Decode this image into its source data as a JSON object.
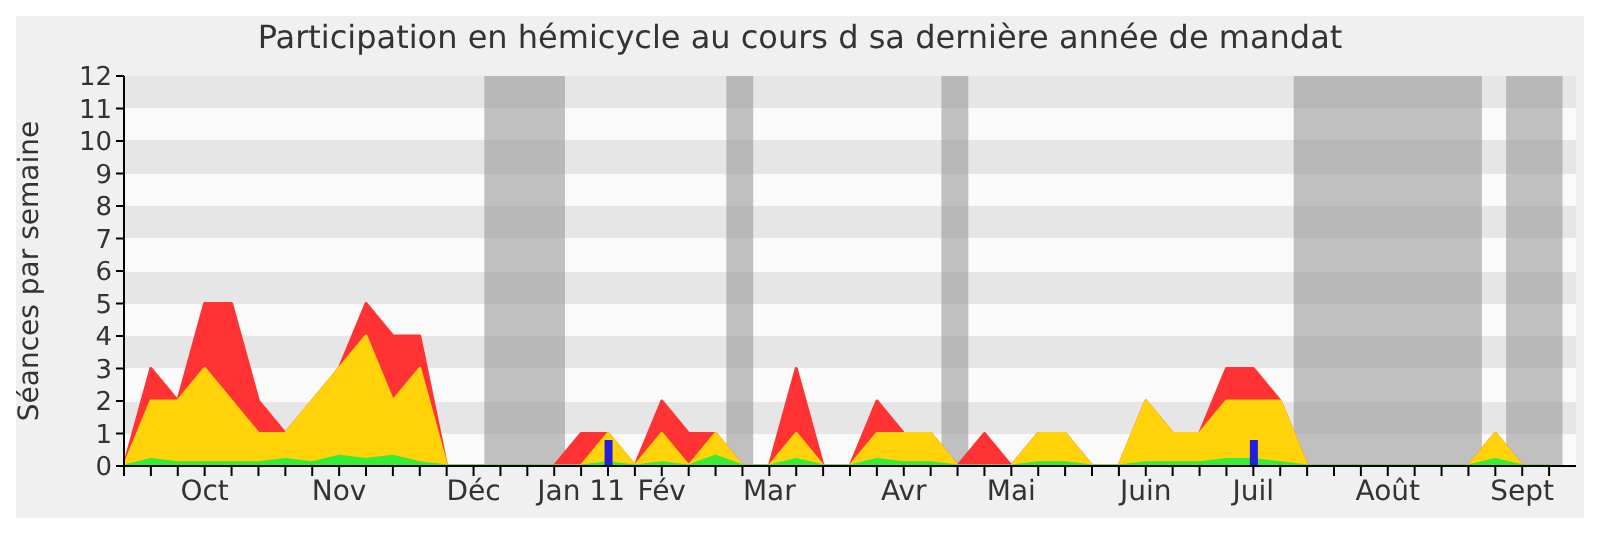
{
  "chart_data": {
    "type": "area",
    "title": "Participation en hémicycle au cours d sa dernière année de mandat",
    "ylabel": "Séances par semaine",
    "categories": [
      null,
      null,
      null,
      "Oct",
      null,
      null,
      null,
      null,
      "Nov",
      null,
      null,
      null,
      null,
      "Déc",
      null,
      null,
      null,
      "Jan 11",
      null,
      null,
      "Fév",
      null,
      null,
      null,
      "Mar",
      null,
      null,
      null,
      null,
      "Avr",
      null,
      null,
      null,
      "Mai",
      null,
      null,
      null,
      null,
      "Juin",
      null,
      null,
      null,
      "Juil",
      null,
      null,
      null,
      null,
      "Août",
      null,
      null,
      null,
      null,
      "Sept",
      null
    ],
    "series": [
      {
        "color": "#ff3333",
        "values": [
          0,
          3,
          2,
          5,
          5,
          2,
          1,
          2,
          3,
          5,
          4,
          4,
          0,
          0,
          0,
          0,
          0,
          1,
          1,
          0,
          2,
          1,
          1,
          0,
          0,
          3,
          0,
          0,
          2,
          1,
          1,
          0,
          1,
          0,
          1,
          1,
          0,
          0,
          2,
          1,
          1,
          3,
          3,
          2,
          0,
          0,
          0,
          0,
          0,
          0,
          0,
          1,
          0,
          0
        ]
      },
      {
        "color": "#ffd20a",
        "values": [
          0,
          2,
          2,
          3,
          2,
          1,
          1,
          2,
          3,
          4,
          2,
          3,
          0,
          0,
          0,
          0,
          0,
          0,
          1,
          0,
          1,
          0,
          1,
          0,
          0,
          1,
          0,
          0,
          1,
          1,
          1,
          0,
          0,
          0,
          1,
          1,
          0,
          0,
          2,
          1,
          1,
          2,
          2,
          2,
          0,
          0,
          0,
          0,
          0,
          0,
          0,
          1,
          0,
          0
        ]
      },
      {
        "color": "#33ee33",
        "values": [
          0,
          0.2,
          0.1,
          0.1,
          0.1,
          0.1,
          0.2,
          0.1,
          0.3,
          0.2,
          0.3,
          0.1,
          0,
          0,
          0,
          0,
          0,
          0,
          0.1,
          0,
          0.1,
          0,
          0.3,
          0,
          0,
          0.2,
          0,
          0,
          0.2,
          0.1,
          0.1,
          0,
          0,
          0,
          0.1,
          0.1,
          0,
          0,
          0.1,
          0.1,
          0.1,
          0.2,
          0.2,
          0.1,
          0,
          0,
          0,
          0,
          0,
          0,
          0,
          0.2,
          0,
          0
        ]
      },
      {
        "type": "bar",
        "color": "#2020dd",
        "values": [
          null,
          null,
          null,
          null,
          null,
          null,
          null,
          null,
          null,
          null,
          null,
          null,
          null,
          null,
          null,
          null,
          null,
          null,
          0.8,
          null,
          null,
          null,
          null,
          null,
          null,
          null,
          null,
          null,
          null,
          null,
          null,
          null,
          null,
          null,
          null,
          null,
          null,
          null,
          null,
          null,
          null,
          null,
          0.8,
          null,
          null,
          null,
          null,
          null,
          null,
          null,
          null,
          null,
          null,
          null
        ]
      }
    ],
    "ylim": [
      0,
      12
    ],
    "yticks": [
      0,
      1,
      2,
      3,
      4,
      5,
      6,
      7,
      8,
      9,
      10,
      11,
      12
    ],
    "tick_labels": "xy"
  }
}
